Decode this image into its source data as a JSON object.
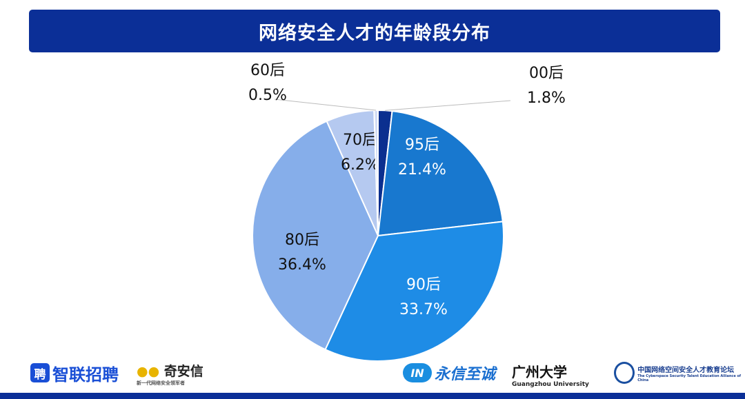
{
  "header": {
    "title": "网络安全人才的年龄段分布"
  },
  "chart_data": {
    "type": "pie",
    "title": "网络安全人才的年龄段分布",
    "start": "12 o'clock, clockwise",
    "slices": [
      {
        "label": "00后",
        "value": 1.8,
        "text": "1.8%",
        "color": "#0b2f8f"
      },
      {
        "label": "95后",
        "value": 21.4,
        "text": "21.4%",
        "color": "#1878cf"
      },
      {
        "label": "90后",
        "value": 33.7,
        "text": "33.7%",
        "color": "#1e8ce6"
      },
      {
        "label": "80后",
        "value": 36.4,
        "text": "36.4%",
        "color": "#86aeea"
      },
      {
        "label": "70后",
        "value": 6.2,
        "text": "6.2%",
        "color": "#b5c9f0"
      },
      {
        "label": "60后",
        "value": 0.5,
        "text": "0.5%",
        "color": "#d2ddf5"
      }
    ]
  },
  "footer": {
    "logos": [
      {
        "name": "智联招聘",
        "badge": "聘"
      },
      {
        "name": "奇安信",
        "sub": "新一代网络安全领军者"
      },
      {
        "name": "永信至诚",
        "badge": "IN"
      },
      {
        "name": "广州大学",
        "sub": "Guangzhou University"
      },
      {
        "name": "中国网络空间安全人才教育论坛",
        "sub": "The Cyberspace Security Talent Education Alliance of China"
      }
    ]
  },
  "colors": {
    "brand": "#0b2f97"
  }
}
